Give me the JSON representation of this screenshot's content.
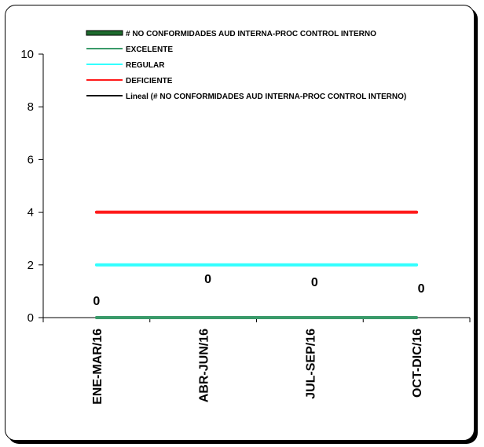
{
  "chart_data": {
    "type": "line",
    "categories": [
      "ENE-MAR/16",
      "ABR-JUN/16",
      "JUL-SEP/16",
      "OCT-DIC/16"
    ],
    "ylim": [
      0,
      10
    ],
    "yticks": [
      0,
      2,
      4,
      6,
      8,
      10
    ],
    "grid": false,
    "legend_position": "top",
    "series": [
      {
        "name": "# NO CONFORMIDADES AUD INTERNA-PROC CONTROL INTERNO",
        "values": [
          0,
          0,
          0,
          0
        ],
        "color": "#1e6b2e",
        "kind": "bar-line"
      },
      {
        "name": "EXCELENTE",
        "values": [
          0,
          0,
          0,
          0
        ],
        "color": "#3a9a6a",
        "kind": "line"
      },
      {
        "name": "REGULAR",
        "values": [
          2,
          2,
          2,
          2
        ],
        "color": "#33ffff",
        "kind": "line"
      },
      {
        "name": "DEFICIENTE",
        "values": [
          4,
          4,
          4,
          4
        ],
        "color": "#ff1a1a",
        "kind": "line"
      },
      {
        "name": "Lineal (# NO CONFORMIDADES AUD INTERNA-PROC CONTROL INTERNO)",
        "values": [
          0,
          0,
          0,
          0
        ],
        "color": "#000000",
        "kind": "trend"
      }
    ],
    "data_labels": [
      "0",
      "0",
      "0",
      "0"
    ]
  }
}
